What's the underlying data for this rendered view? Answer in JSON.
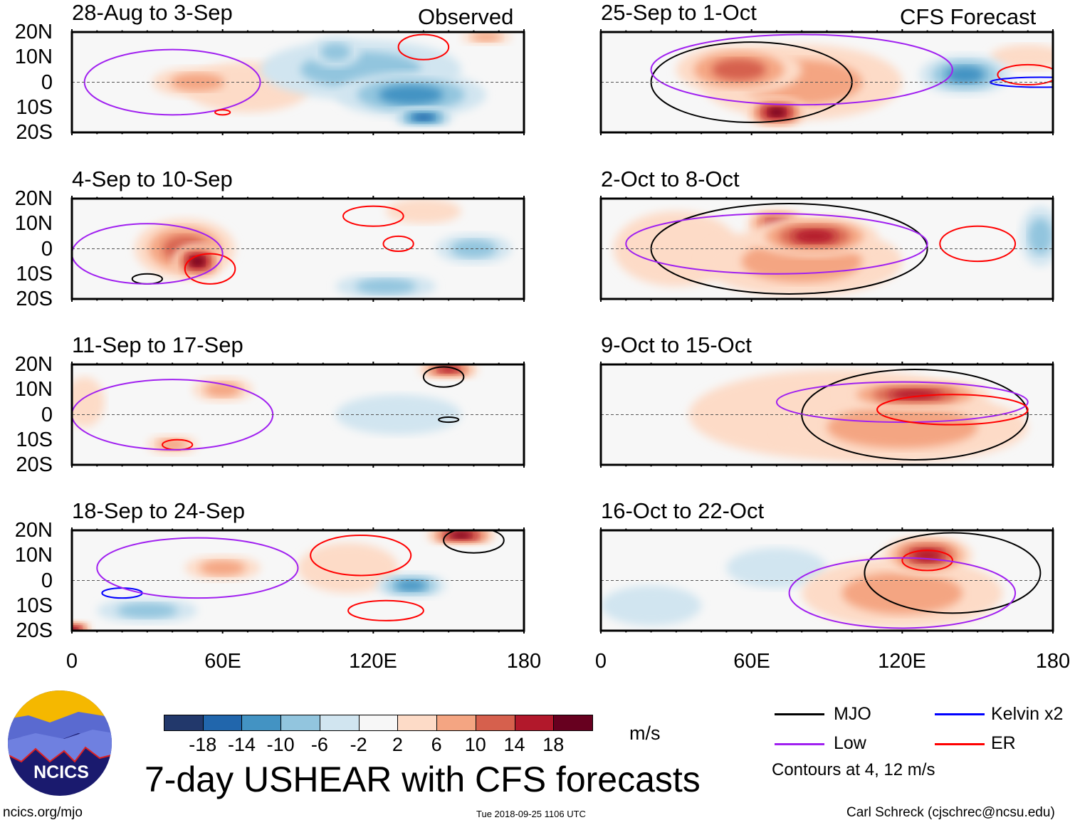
{
  "title": "7-day USHEAR with CFS forecasts",
  "tags": {
    "observed": "Observed",
    "forecast": "CFS Forecast"
  },
  "lat_labels": [
    "20N",
    "10N",
    "0",
    "10S",
    "20S"
  ],
  "lon_labels": [
    "0",
    "60E",
    "120E",
    "180"
  ],
  "panels": [
    {
      "title": "28-Aug to 3-Sep",
      "kind": "observed",
      "shading": [
        [
          50,
          0,
          8,
          18,
          6
        ],
        [
          70,
          -2,
          4,
          25,
          10
        ],
        [
          115,
          5,
          -6,
          40,
          12
        ],
        [
          135,
          -5,
          -10,
          30,
          9
        ],
        [
          140,
          -14,
          -14,
          12,
          4
        ],
        [
          105,
          12,
          -8,
          10,
          6
        ],
        [
          165,
          18,
          6,
          10,
          3
        ]
      ],
      "contours": [
        [
          "ER",
          140,
          14,
          10,
          5
        ],
        [
          "Low",
          40,
          0,
          35,
          13
        ],
        [
          "ER",
          60,
          -12,
          3,
          1
        ]
      ]
    },
    {
      "title": "4-Sep to 10-Sep",
      "kind": "observed",
      "shading": [
        [
          50,
          -5,
          18,
          10,
          7
        ],
        [
          45,
          0,
          10,
          20,
          12
        ],
        [
          160,
          0,
          -8,
          15,
          6
        ],
        [
          125,
          -15,
          -6,
          20,
          5
        ],
        [
          140,
          15,
          4,
          15,
          5
        ]
      ],
      "contours": [
        [
          "ER",
          55,
          -8,
          10,
          6
        ],
        [
          "ER",
          120,
          13,
          12,
          4
        ],
        [
          "ER",
          130,
          2,
          6,
          3
        ],
        [
          "MJO",
          30,
          -12,
          6,
          2
        ],
        [
          "Low",
          30,
          -2,
          30,
          12
        ]
      ]
    },
    {
      "title": "11-Sep to 17-Sep",
      "kind": "observed",
      "shading": [
        [
          60,
          10,
          8,
          12,
          5
        ],
        [
          150,
          18,
          14,
          12,
          4
        ],
        [
          40,
          -12,
          8,
          10,
          4
        ],
        [
          130,
          0,
          -4,
          25,
          8
        ],
        [
          5,
          5,
          4,
          8,
          10
        ]
      ],
      "contours": [
        [
          "MJO",
          148,
          15,
          8,
          4
        ],
        [
          "MJO",
          150,
          -2,
          4,
          1
        ],
        [
          "ER",
          42,
          -12,
          6,
          2
        ],
        [
          "Low",
          40,
          0,
          40,
          14
        ]
      ]
    },
    {
      "title": "18-Sep to 24-Sep",
      "kind": "observed",
      "shading": [
        [
          155,
          18,
          18,
          14,
          4
        ],
        [
          135,
          -2,
          -10,
          14,
          5
        ],
        [
          60,
          5,
          8,
          15,
          5
        ],
        [
          0,
          -20,
          18,
          8,
          4
        ],
        [
          30,
          -12,
          -6,
          20,
          5
        ],
        [
          110,
          5,
          4,
          20,
          10
        ]
      ],
      "contours": [
        [
          "MJO",
          160,
          16,
          12,
          5
        ],
        [
          "ER",
          115,
          10,
          20,
          8
        ],
        [
          "ER",
          125,
          -12,
          15,
          4
        ],
        [
          "Kelvin",
          20,
          -5,
          8,
          2
        ],
        [
          "Low",
          50,
          5,
          40,
          12
        ]
      ]
    },
    {
      "title": "25-Sep to 1-Oct",
      "kind": "forecast",
      "shading": [
        [
          55,
          5,
          12,
          25,
          10
        ],
        [
          70,
          -12,
          18,
          12,
          6
        ],
        [
          80,
          0,
          8,
          40,
          15
        ],
        [
          145,
          3,
          -10,
          18,
          8
        ],
        [
          170,
          10,
          4,
          15,
          5
        ]
      ],
      "contours": [
        [
          "MJO",
          60,
          0,
          40,
          16
        ],
        [
          "ER",
          170,
          3,
          12,
          4
        ],
        [
          "Low",
          80,
          5,
          60,
          14
        ],
        [
          "Kelvin",
          175,
          0,
          20,
          2
        ]
      ]
    },
    {
      "title": "2-Oct to 8-Oct",
      "kind": "forecast",
      "shading": [
        [
          85,
          5,
          16,
          25,
          8
        ],
        [
          70,
          10,
          14,
          12,
          6
        ],
        [
          80,
          -5,
          8,
          40,
          14
        ],
        [
          175,
          5,
          -8,
          8,
          12
        ],
        [
          30,
          0,
          4,
          25,
          15
        ]
      ],
      "contours": [
        [
          "MJO",
          75,
          0,
          55,
          18
        ],
        [
          "ER",
          150,
          2,
          15,
          7
        ],
        [
          "Low",
          70,
          2,
          60,
          12
        ]
      ]
    },
    {
      "title": "9-Oct to 15-Oct",
      "kind": "forecast",
      "shading": [
        [
          125,
          8,
          14,
          30,
          6
        ],
        [
          120,
          -5,
          8,
          50,
          14
        ],
        [
          95,
          0,
          4,
          60,
          18
        ]
      ],
      "contours": [
        [
          "MJO",
          125,
          0,
          45,
          18
        ],
        [
          "Low",
          120,
          5,
          50,
          8
        ],
        [
          "ER",
          140,
          2,
          30,
          6
        ]
      ]
    },
    {
      "title": "16-Oct to 22-Oct",
      "kind": "forecast",
      "shading": [
        [
          130,
          10,
          16,
          18,
          8
        ],
        [
          120,
          -5,
          8,
          40,
          14
        ],
        [
          20,
          -10,
          -4,
          20,
          8
        ],
        [
          70,
          5,
          -2,
          20,
          8
        ]
      ],
      "contours": [
        [
          "MJO",
          140,
          3,
          35,
          16
        ],
        [
          "ER",
          130,
          8,
          10,
          4
        ],
        [
          "Low",
          120,
          -5,
          45,
          14
        ]
      ]
    }
  ],
  "colorbar": {
    "colors": [
      "#22386b",
      "#2166ac",
      "#4393c3",
      "#92c5de",
      "#d1e5f0",
      "#f7f7f7",
      "#fddbc7",
      "#f4a582",
      "#d6604d",
      "#b2182b",
      "#67001f"
    ],
    "labels": [
      "-18",
      "-14",
      "-10",
      "-6",
      "-2",
      "2",
      "6",
      "10",
      "14",
      "18"
    ],
    "units": "m/s"
  },
  "legend": {
    "items": [
      {
        "label": "MJO",
        "color": "#000000"
      },
      {
        "label": "Kelvin x2",
        "color": "#0000ff"
      },
      {
        "label": "Low",
        "color": "#a020f0"
      },
      {
        "label": "ER",
        "color": "#ff0000"
      }
    ],
    "note": "Contours at 4, 12 m/s"
  },
  "logo": {
    "text": "NCICS"
  },
  "footer": {
    "url": "ncics.org/mjo",
    "timestamp": "Tue 2018-09-25 1106 UTC",
    "author": "Carl Schreck (cjschrec@ncsu.edu)"
  }
}
